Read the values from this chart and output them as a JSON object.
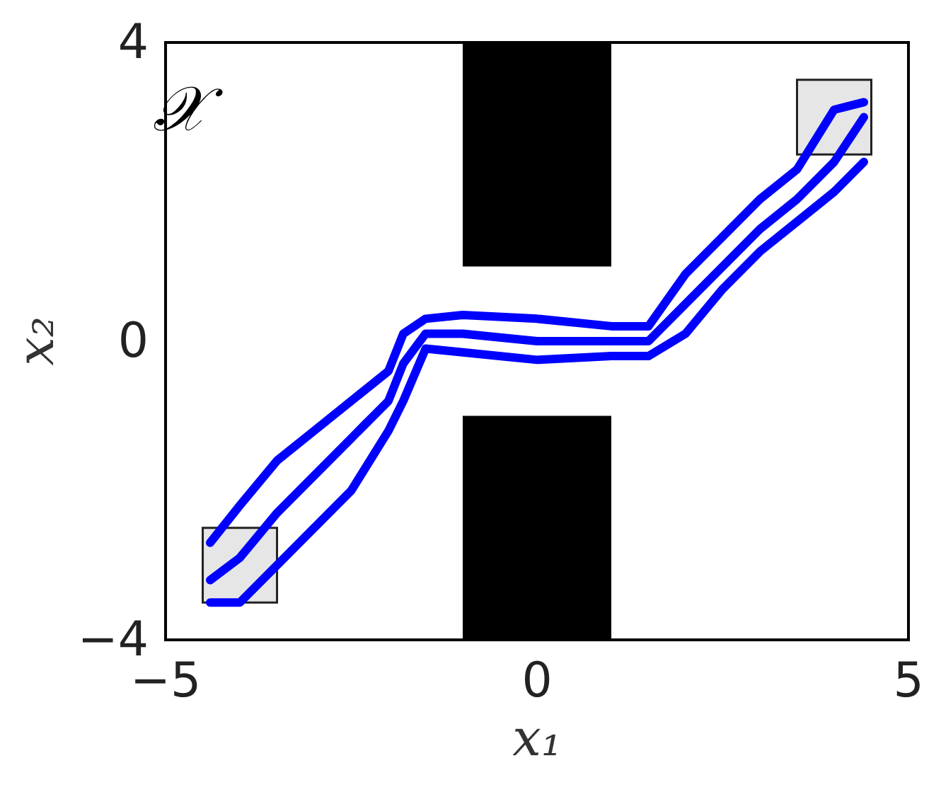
{
  "chart_data": {
    "type": "line",
    "xlabel": "x₁",
    "ylabel": "x₂",
    "annotations": [
      "𝒳"
    ],
    "xlim": [
      -5,
      5
    ],
    "ylim": [
      -4,
      4
    ],
    "xticks": [
      {
        "value": -5,
        "label": "−5"
      },
      0,
      5
    ],
    "yticks": [
      {
        "value": -4,
        "label": "−4"
      },
      0,
      4
    ],
    "grid": false,
    "marker": "none",
    "line_style": "solid",
    "series": [
      {
        "type": "area",
        "color": "#000000",
        "x": [
          -1,
          1,
          1,
          -1,
          -1
        ],
        "values": [
          1,
          1,
          4,
          4,
          1
        ]
      },
      {
        "type": "area",
        "color": "#000000",
        "x": [
          -1,
          1,
          1,
          -1,
          -1
        ],
        "values": [
          -4,
          -4,
          -1,
          -1,
          -4
        ]
      },
      {
        "type": "area",
        "color": "#e6e6e6",
        "x": [
          -4.5,
          -3.5,
          -3.5,
          -4.5,
          -4.5
        ],
        "values": [
          -3.5,
          -3.5,
          -2.5,
          -2.5,
          -3.5
        ]
      },
      {
        "type": "area",
        "color": "#e6e6e6",
        "x": [
          3.5,
          4.5,
          4.5,
          3.5,
          3.5
        ],
        "values": [
          2.5,
          2.5,
          3.5,
          3.5,
          2.5
        ]
      },
      {
        "color": "#0000ff",
        "x": [
          -4.4,
          -4,
          -3.5,
          -3,
          -2.5,
          -2,
          -1.8,
          -1.5,
          -1,
          0,
          1,
          1.5,
          2,
          2.5,
          3,
          3.5,
          4,
          4.4
        ],
        "values": [
          -2.7,
          -2.2,
          -1.6,
          -1.2,
          -0.8,
          -0.4,
          0.1,
          0.3,
          0.35,
          0.3,
          0.2,
          0.2,
          0.9,
          1.4,
          1.9,
          2.3,
          3.1,
          3.2
        ]
      },
      {
        "color": "#0000ff",
        "x": [
          -4.4,
          -4,
          -3.5,
          -3,
          -2.5,
          -2,
          -1.8,
          -1.5,
          -1,
          0,
          1,
          1.5,
          2,
          2.5,
          3,
          3.5,
          4,
          4.4
        ],
        "values": [
          -3.2,
          -2.9,
          -2.3,
          -1.8,
          -1.3,
          -0.8,
          -0.3,
          0.1,
          0.1,
          0.0,
          0.0,
          0.0,
          0.5,
          1.0,
          1.5,
          1.9,
          2.4,
          3.0
        ]
      },
      {
        "color": "#0000ff",
        "x": [
          -4.4,
          -4,
          -3.5,
          -3,
          -2.5,
          -2,
          -1.8,
          -1.5,
          -1,
          0,
          1,
          1.5,
          2,
          2.5,
          3,
          3.5,
          4,
          4.4
        ],
        "values": [
          -3.5,
          -3.5,
          -3.0,
          -2.5,
          -2.0,
          -1.2,
          -0.8,
          -0.1,
          -0.15,
          -0.25,
          -0.2,
          -0.2,
          0.1,
          0.7,
          1.2,
          1.6,
          2.0,
          2.4
        ]
      }
    ]
  }
}
